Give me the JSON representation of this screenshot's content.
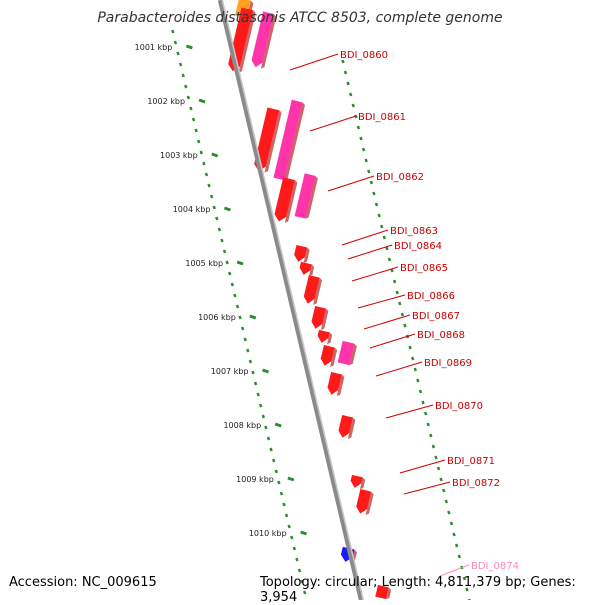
{
  "title": "Parabacteroides distasonis ATCC 8503, complete genome",
  "footer": {
    "accession": "Accession: NC_009615",
    "summary": "Topology: circular; Length: 4,811,379 bp; Genes: 3,954"
  },
  "colors": {
    "backbone": "#8a8a8a",
    "ticks": "#2e8b2e",
    "gene_red": "#ff1a1a",
    "gene_pink": "#ff33aa",
    "gene_blue": "#1a1aff",
    "gene_orange": "#ffa020",
    "label_red": "#cc0000",
    "label_pink": "#ff88bb"
  },
  "scale_labels": [
    "1001 kbp",
    "1002 kbp",
    "1003 kbp",
    "1004 kbp",
    "1005 kbp",
    "1006 kbp",
    "1007 kbp",
    "1008 kbp",
    "1009 kbp",
    "1010 kbp"
  ],
  "gene_labels": [
    {
      "text": "BDI_0860",
      "color": "red"
    },
    {
      "text": "BDI_0861",
      "color": "red"
    },
    {
      "text": "BDI_0862",
      "color": "red"
    },
    {
      "text": "BDI_0863",
      "color": "red"
    },
    {
      "text": "BDI_0864",
      "color": "red"
    },
    {
      "text": "BDI_0865",
      "color": "red"
    },
    {
      "text": "BDI_0866",
      "color": "red"
    },
    {
      "text": "BDI_0867",
      "color": "red"
    },
    {
      "text": "BDI_0868",
      "color": "red"
    },
    {
      "text": "BDI_0869",
      "color": "red"
    },
    {
      "text": "BDI_0870",
      "color": "red"
    },
    {
      "text": "BDI_0871",
      "color": "red"
    },
    {
      "text": "BDI_0872",
      "color": "red"
    },
    {
      "text": "BDI_0874",
      "color": "pink"
    }
  ]
}
